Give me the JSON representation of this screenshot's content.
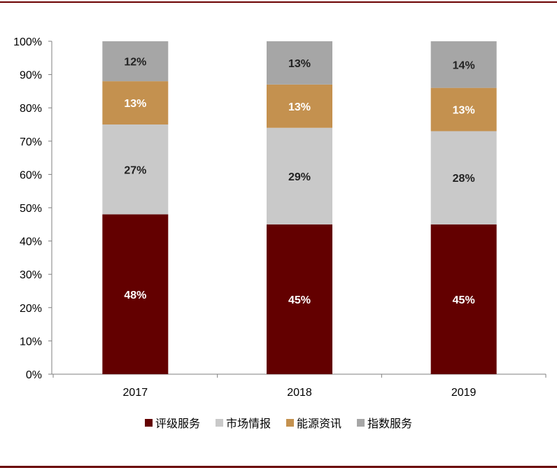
{
  "chart_data": {
    "type": "bar",
    "stacked": true,
    "categories": [
      "2017",
      "2018",
      "2019"
    ],
    "series": [
      {
        "name": "评级服务",
        "values": [
          48,
          45,
          45
        ],
        "labels": [
          "48%",
          "45%",
          "45%"
        ],
        "color": "#630000",
        "label_color": "#ffffff"
      },
      {
        "name": "市场情报",
        "values": [
          27,
          29,
          28
        ],
        "labels": [
          "27%",
          "29%",
          "28%"
        ],
        "color": "#c9c9c9",
        "label_color": "#222222"
      },
      {
        "name": "能源资讯",
        "values": [
          13,
          13,
          13
        ],
        "labels": [
          "13%",
          "13%",
          "13%"
        ],
        "color": "#c4914f",
        "label_color": "#ffffff"
      },
      {
        "name": "指数服务",
        "values": [
          12,
          13,
          14
        ],
        "labels": [
          "12%",
          "13%",
          "14%"
        ],
        "color": "#a6a6a6",
        "label_color": "#222222"
      }
    ],
    "ylim": [
      0,
      100
    ],
    "yticks": [
      "0%",
      "10%",
      "20%",
      "30%",
      "40%",
      "50%",
      "60%",
      "70%",
      "80%",
      "90%",
      "100%"
    ],
    "legend_position": "bottom",
    "grid": false
  }
}
